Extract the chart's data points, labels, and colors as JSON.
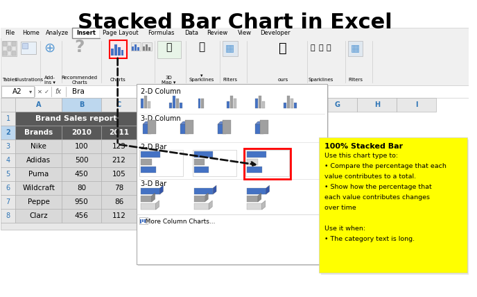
{
  "title": "Stacked Bar Chart in Excel",
  "title_fontsize": 22,
  "bg_color": "#ffffff",
  "ribbon_tabs": [
    "File",
    "Home",
    "Analyze",
    "Insert",
    "Page Layout",
    "Formulas",
    "Data",
    "Review",
    "View",
    "Developer"
  ],
  "active_tab": "Insert",
  "cell_ref": "A2",
  "formula_bar_text": "Bra",
  "spreadsheet_header": "Brand Sales report",
  "col_headers": [
    "Brands",
    "2010",
    "2011"
  ],
  "rows": [
    [
      "Nike",
      "100",
      "123"
    ],
    [
      "Adidas",
      "500",
      "212"
    ],
    [
      "Puma",
      "450",
      "105"
    ],
    [
      "Wildcraft",
      "80",
      "78"
    ],
    [
      "Peppe",
      "950",
      "86"
    ],
    [
      "Clarz",
      "456",
      "112"
    ]
  ],
  "tooltip_title": "100% Stacked Bar",
  "tooltip_lines": [
    "Use this chart type to:",
    "• Compare the percentage that each",
    "value contributes to a total.",
    "• Show how the percentage that",
    "each value contributes changes",
    "over time",
    "",
    "Use it when:",
    "• The category text is long."
  ],
  "tooltip_bg": "#ffff00",
  "section_2d_column": "2-D Column",
  "section_3d_column": "3-D Column",
  "section_2d_bar": "2-D Bar",
  "section_3d_bar": "3-D Bar",
  "more_charts": "   More Column Charts...",
  "spreadsheet_header_bg": "#595959",
  "header_row_bg": "#595959",
  "data_row_bg": "#d9d9d9",
  "row_num_color": "#2e75b6",
  "col_letter_color": "#2e75b6",
  "header_text_color": "#ffffff",
  "active_col_bg": "#bdd7ee",
  "blue_bar_color": "#4472c4",
  "gray_bar_color": "#a6a6a6"
}
